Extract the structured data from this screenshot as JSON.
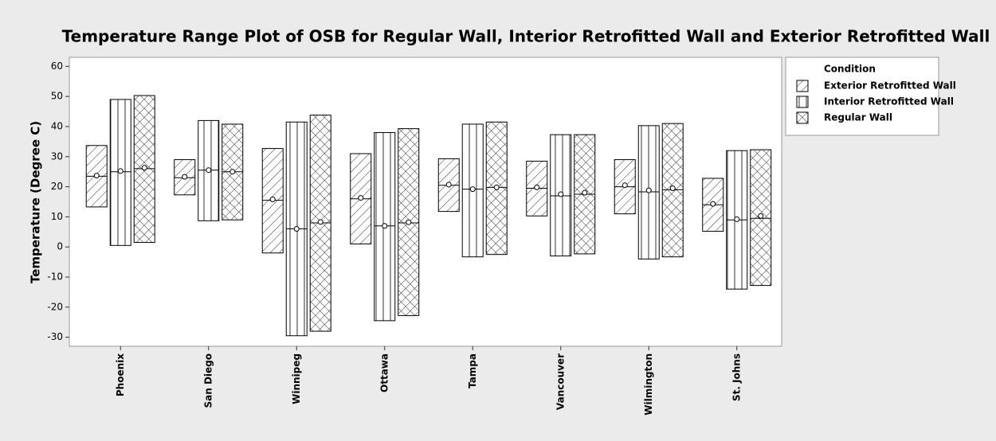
{
  "chart_data": {
    "type": "range",
    "title": "Temperature Range Plot of OSB for Regular Wall, Interior Retrofitted Wall and Exterior Retrofitted Wall",
    "y_label": "Temperature (Degree C)",
    "legend_title": "Condition",
    "legend_position": "right",
    "categories": [
      "Phoenix",
      "San Diego",
      "Winnipeg",
      "Ottawa",
      "Tampa",
      "Vancouver",
      "Wilmington",
      "St. Johns"
    ],
    "ylim": [
      -33,
      63
    ],
    "yticks": [
      -30,
      -20,
      -10,
      0,
      10,
      20,
      30,
      40,
      50,
      60
    ],
    "series": [
      {
        "name": "Exterior Retrofitted Wall",
        "color": "#000000",
        "pattern": "diagonal",
        "max": [
          33.7,
          29,
          32.7,
          31,
          29.3,
          28.5,
          29,
          22.8
        ],
        "min": [
          13.3,
          17.3,
          -2,
          1,
          11.8,
          10.3,
          11,
          5.2
        ],
        "median": [
          23.5,
          23,
          15.5,
          16,
          20.5,
          19.5,
          20,
          14
        ],
        "mean": [
          23.7,
          23.3,
          15.8,
          16.3,
          20.7,
          19.8,
          20.5,
          14.3
        ]
      },
      {
        "name": "Interior Retrofitted Wall",
        "color": "#000000",
        "pattern": "vertical",
        "max": [
          49,
          42,
          41.5,
          38,
          40.8,
          37.3,
          40.3,
          32
        ],
        "min": [
          0.5,
          8.7,
          -29.5,
          -24.5,
          -3.3,
          -3,
          -4,
          -14
        ],
        "median": [
          25,
          25.5,
          6,
          7,
          19.2,
          17,
          18.3,
          9
        ],
        "mean": [
          25.2,
          25.5,
          6,
          7,
          19.2,
          17.5,
          18.8,
          9.2
        ]
      },
      {
        "name": "Regular Wall",
        "color": "#000000",
        "pattern": "crosshatch",
        "max": [
          50.3,
          40.8,
          43.8,
          39.3,
          41.5,
          37.3,
          41,
          32.3
        ],
        "min": [
          1.5,
          9,
          -28,
          -22.8,
          -2.5,
          -2.3,
          -3.3,
          -12.8
        ],
        "median": [
          26,
          25,
          8,
          8,
          19.8,
          17.5,
          19,
          9.5
        ],
        "mean": [
          26.3,
          25,
          8.3,
          8.2,
          19.8,
          18,
          19.5,
          10.3
        ]
      }
    ]
  }
}
